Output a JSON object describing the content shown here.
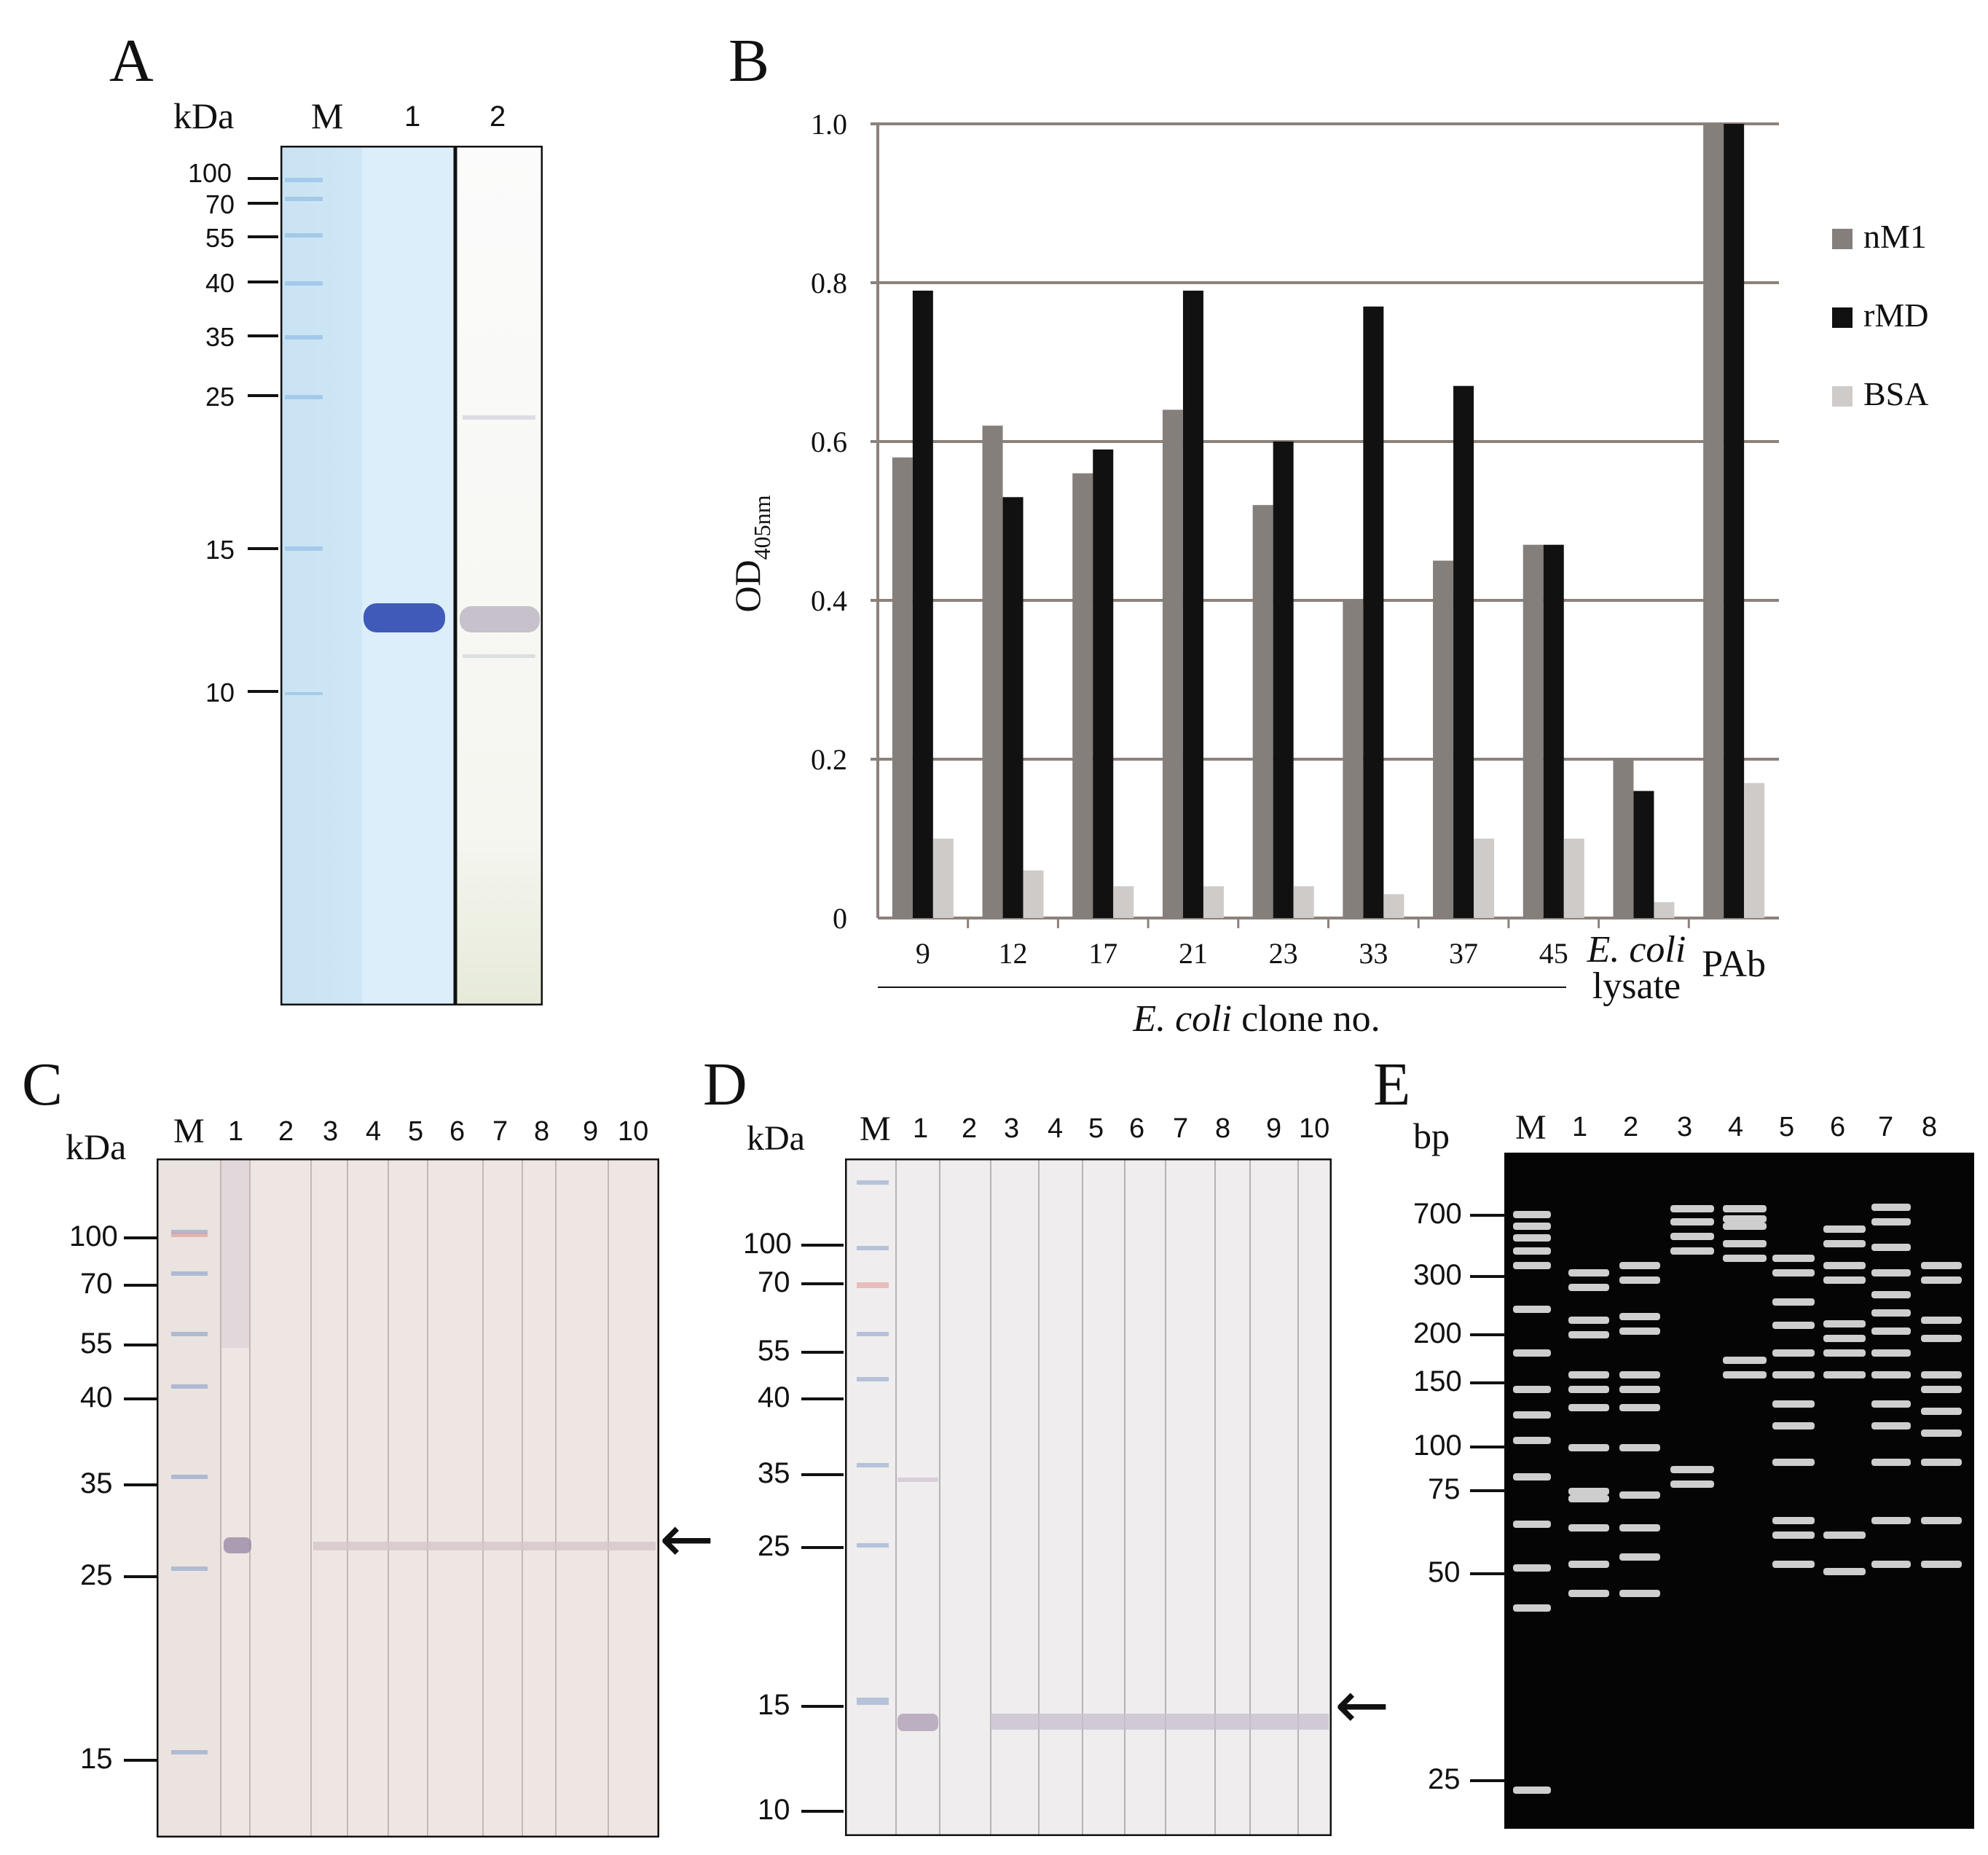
{
  "figure": {
    "panel_labels": [
      "A",
      "B",
      "C",
      "D",
      "E"
    ]
  },
  "panel_a": {
    "unit": "kDa",
    "lanes": [
      "M",
      "1",
      "2"
    ],
    "markers": [
      "100",
      "70",
      "55",
      "40",
      "35",
      "25",
      "15",
      "10"
    ]
  },
  "panel_b": {
    "legend": [
      "nM1",
      "rMD",
      "BSA"
    ],
    "colors": {
      "nM1": "#857f7c",
      "rMD": "#111111",
      "BSA": "#cfcbc9",
      "grid": "#8c817b"
    },
    "clone_group_label_italic": "E. coli",
    "clone_group_label_rest": " clone no.",
    "lysate_label_italic": "E. coli",
    "lysate_label_rest": "lysate"
  },
  "chart_data": {
    "type": "bar",
    "ylabel": "OD405nm",
    "ylabel_main": "OD",
    "ylabel_sub": "405nm",
    "ylim": [
      0,
      1.0
    ],
    "yticks": [
      "0",
      "0.2",
      "0.4",
      "0.6",
      "0.8",
      "1.0"
    ],
    "grid": true,
    "legend_position": "right",
    "categories": [
      "9",
      "12",
      "17",
      "21",
      "23",
      "33",
      "37",
      "45",
      "E. coli lysate",
      "PAb"
    ],
    "series": [
      {
        "name": "nM1",
        "values": [
          0.58,
          0.62,
          0.56,
          0.64,
          0.52,
          0.4,
          0.45,
          0.47,
          0.2,
          1.0
        ]
      },
      {
        "name": "rMD",
        "values": [
          0.79,
          0.53,
          0.59,
          0.79,
          0.6,
          0.77,
          0.67,
          0.47,
          0.16,
          1.0
        ]
      },
      {
        "name": "BSA",
        "values": [
          0.1,
          0.06,
          0.04,
          0.04,
          0.04,
          0.03,
          0.1,
          0.1,
          0.02,
          0.17
        ]
      }
    ]
  },
  "panel_c": {
    "unit": "kDa",
    "lanes": [
      "M",
      "1",
      "2",
      "3",
      "4",
      "5",
      "6",
      "7",
      "8",
      "9",
      "10"
    ],
    "markers": [
      "100",
      "70",
      "55",
      "40",
      "35",
      "25",
      "15"
    ]
  },
  "panel_d": {
    "unit": "kDa",
    "lanes": [
      "M",
      "1",
      "2",
      "3",
      "4",
      "5",
      "6",
      "7",
      "8",
      "9",
      "10"
    ],
    "markers": [
      "100",
      "70",
      "55",
      "40",
      "35",
      "25",
      "15",
      "10"
    ]
  },
  "panel_e": {
    "unit": "bp",
    "lanes": [
      "M",
      "1",
      "2",
      "3",
      "4",
      "5",
      "6",
      "7",
      "8"
    ],
    "markers": [
      "700",
      "300",
      "200",
      "150",
      "100",
      "75",
      "50",
      "25"
    ]
  }
}
